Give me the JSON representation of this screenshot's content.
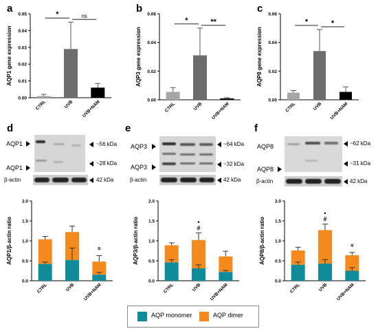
{
  "colors": {
    "control": "#a7a7a9",
    "uvb": "#6c6c6c",
    "nam": "#000000",
    "monomer": "#0f8b9a",
    "dimer": "#f58a1f"
  },
  "panels": {
    "a": {
      "letter": "a",
      "ylabel": "AQP1 gene expression"
    },
    "b": {
      "letter": "b",
      "ylabel": "AQP3 gene expression"
    },
    "c": {
      "letter": "c",
      "ylabel": "AQP8 gene expression"
    },
    "d": {
      "letter": "d",
      "ylabel": "AQP1/β-actin ratio"
    },
    "e": {
      "letter": "e",
      "ylabel": "AQP3/β-actin ratio"
    },
    "f": {
      "letter": "f",
      "ylabel": "AQP8/β-actin ratio"
    }
  },
  "blots": {
    "d": {
      "prot_top": "AQP1",
      "prot_bot": "AQP1",
      "kda_top": "~56 kDa",
      "kda_bot": "~28 kDa",
      "actin": "β-actin",
      "actin_kda": "42 kDa"
    },
    "e": {
      "prot_top": "AQP3",
      "prot_bot": "AQP3",
      "kda_top": "~64 kDa",
      "kda_bot": "~32 kDa",
      "actin": "β-actin",
      "actin_kda": "42 kDa"
    },
    "f": {
      "prot_top": "AQP8",
      "prot_bot": "AQP8",
      "kda_top": "~62 kDa",
      "kda_bot": "~31 kDa",
      "actin": "β-actin",
      "actin_kda": "42 kDa"
    }
  },
  "legend": {
    "monomer": "AQP monomer",
    "dimer": "AQP dimer"
  },
  "chart_data": [
    {
      "panel": "a",
      "type": "bar",
      "categories": [
        "CTRL",
        "UVB",
        "UVB+NAM"
      ],
      "values": [
        0.001,
        0.029,
        0.006
      ],
      "errors": [
        0.001,
        0.016,
        0.0025
      ],
      "ylabel": "AQP1 gene expression",
      "ylim": [
        0,
        0.05
      ],
      "yticks": [
        "0.00",
        "0.01",
        "0.02",
        "0.03",
        "0.04",
        "0.05"
      ],
      "sig": [
        {
          "from": 0,
          "to": 1,
          "label": "*"
        },
        {
          "from": 1,
          "to": 2,
          "label": "ns"
        }
      ]
    },
    {
      "panel": "b",
      "type": "bar",
      "categories": [
        "CTRL",
        "UVB",
        "UVB+NAM"
      ],
      "values": [
        0.0055,
        0.031,
        0.001
      ],
      "errors": [
        0.003,
        0.019,
        0.0005
      ],
      "ylabel": "AQP3 gene expression",
      "ylim": [
        0,
        0.06
      ],
      "yticks": [
        "0.00",
        "0.02",
        "0.04",
        "0.06"
      ],
      "sig": [
        {
          "from": 0,
          "to": 1,
          "label": "*"
        },
        {
          "from": 1,
          "to": 2,
          "label": "**"
        }
      ]
    },
    {
      "panel": "c",
      "type": "bar",
      "categories": [
        "CTRL",
        "UVB",
        "UVB+NAM"
      ],
      "values": [
        0.005,
        0.034,
        0.0055
      ],
      "errors": [
        0.0015,
        0.015,
        0.0035
      ],
      "ylabel": "AQP8 gene expression",
      "ylim": [
        0,
        0.06
      ],
      "yticks": [
        "0.00",
        "0.02",
        "0.04",
        "0.06"
      ],
      "sig": [
        {
          "from": 0,
          "to": 1,
          "label": "*"
        },
        {
          "from": 1,
          "to": 2,
          "label": "*"
        }
      ]
    },
    {
      "panel": "d",
      "type": "bar",
      "stacked": true,
      "categories": [
        "CTRL",
        "UVB",
        "UVB+NAM"
      ],
      "ylabel": "AQP1/β-actin ratio",
      "ylim": [
        0,
        2.0
      ],
      "yticks": [
        "0.0",
        "0.5",
        "1.0",
        "1.5",
        "2.0"
      ],
      "series": [
        {
          "name": "AQP monomer",
          "values": [
            0.42,
            0.52,
            0.15
          ],
          "errors": [
            0.05,
            0.3,
            0.06
          ]
        },
        {
          "name": "AQP dimer",
          "values": [
            0.62,
            0.7,
            0.33
          ],
          "errors": [
            0.07,
            0.15,
            0.15
          ]
        }
      ],
      "markers": [
        null,
        null,
        "°"
      ]
    },
    {
      "panel": "e",
      "type": "bar",
      "stacked": true,
      "categories": [
        "CTRL",
        "UVB",
        "UVB+NAM"
      ],
      "ylabel": "AQP3/β-actin ratio",
      "ylim": [
        0,
        2.0
      ],
      "yticks": [
        "0.0",
        "0.5",
        "1.0",
        "1.5",
        "2.0"
      ],
      "series": [
        {
          "name": "AQP monomer",
          "values": [
            0.46,
            0.31,
            0.22
          ],
          "errors": [
            0.07,
            0.09,
            0.04
          ]
        },
        {
          "name": "AQP dimer",
          "values": [
            0.43,
            0.71,
            0.39
          ],
          "errors": [
            0.06,
            0.18,
            0.13
          ]
        }
      ],
      "markers": [
        null,
        "•\n#",
        null
      ]
    },
    {
      "panel": "f",
      "type": "bar",
      "stacked": true,
      "categories": [
        "CTRL",
        "UVB",
        "UVB+NAM"
      ],
      "ylabel": "AQP8/β-actin ratio",
      "ylim": [
        0,
        2.0
      ],
      "yticks": [
        "0.0",
        "0.5",
        "1.0",
        "1.5",
        "2.0"
      ],
      "series": [
        {
          "name": "AQP monomer",
          "values": [
            0.4,
            0.43,
            0.25
          ],
          "errors": [
            0.07,
            0.1,
            0.08
          ]
        },
        {
          "name": "AQP dimer",
          "values": [
            0.36,
            0.84,
            0.39
          ],
          "errors": [
            0.08,
            0.15,
            0.07
          ]
        }
      ],
      "markers": [
        null,
        "•\n#",
        "°"
      ]
    }
  ]
}
